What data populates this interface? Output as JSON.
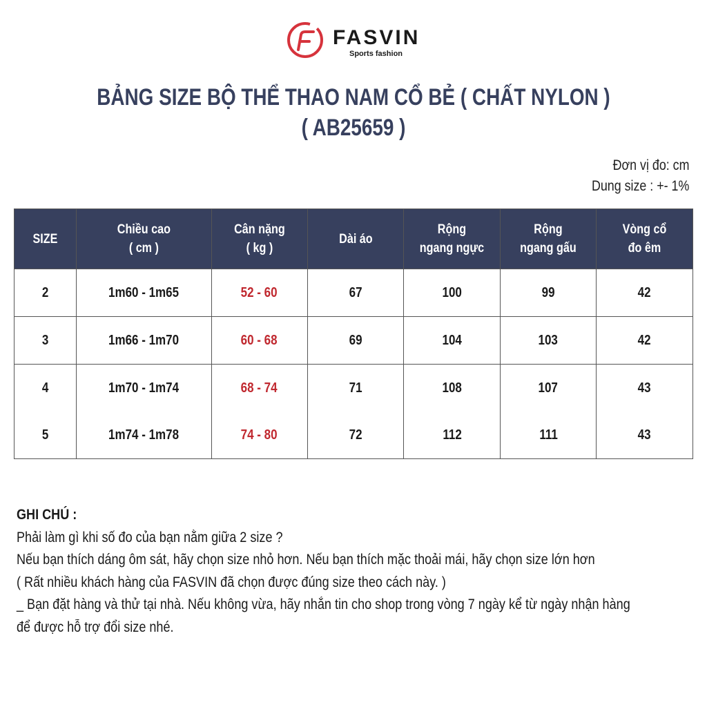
{
  "brand": {
    "name": "FASVIN",
    "tagline": "Sports fashion",
    "accent": "#d6333c"
  },
  "title": {
    "line1": "BẢNG SIZE BỘ THỂ THAO NAM CỔ BẺ ( CHẤT NYLON )",
    "line2": "( AB25659 )",
    "color": "#37405e"
  },
  "units": {
    "unit": "Đơn vị đo: cm",
    "tolerance": "Dung size : +- 1%"
  },
  "table": {
    "header_color": "#37405e",
    "highlight_color": "#c0282f",
    "headers": [
      [
        "SIZE"
      ],
      [
        "Chiều cao",
        "( cm )"
      ],
      [
        "Cân nặng",
        "( kg )"
      ],
      [
        "Dài áo"
      ],
      [
        "Rộng",
        "ngang ngực"
      ],
      [
        "Rộng",
        "ngang gấu"
      ],
      [
        "Vòng cổ",
        "đo êm"
      ]
    ],
    "rows": [
      [
        "2",
        "1m60 - 1m65",
        "52 - 60",
        "67",
        "100",
        "99",
        "42"
      ],
      [
        "3",
        "1m66 - 1m70",
        "60 - 68",
        "69",
        "104",
        "103",
        "42"
      ],
      [
        "4",
        "1m70 - 1m74",
        "68 - 74",
        "71",
        "108",
        "107",
        "43"
      ],
      [
        "5",
        "1m74 - 1m78",
        "74 - 80",
        "72",
        "112",
        "111",
        "43"
      ]
    ]
  },
  "notes": {
    "heading": "GHI CHÚ :",
    "lines": [
      "Phải làm gì khi số đo của bạn nằm giữa 2 size ?",
      "Nếu bạn thích dáng ôm sát, hãy chọn size nhỏ hơn. Nếu bạn thích mặc thoải mái, hãy chọn size lớn hơn",
      "( Rất nhiều khách hàng của FASVIN đã chọn được đúng size theo cách này. )",
      "_ Bạn đặt hàng và thử tại nhà. Nếu không vừa, hãy nhắn tin cho shop trong vòng 7 ngày kể từ ngày nhận hàng",
      "để được hỗ trợ đổi size nhé."
    ]
  }
}
